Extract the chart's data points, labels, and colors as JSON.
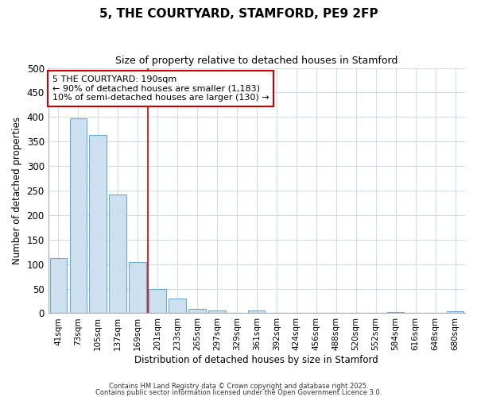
{
  "title": "5, THE COURTYARD, STAMFORD, PE9 2FP",
  "subtitle": "Size of property relative to detached houses in Stamford",
  "xlabel": "Distribution of detached houses by size in Stamford",
  "ylabel": "Number of detached properties",
  "bar_color": "#cce0f0",
  "bar_edge_color": "#6aaad4",
  "categories": [
    "41sqm",
    "73sqm",
    "105sqm",
    "137sqm",
    "169sqm",
    "201sqm",
    "233sqm",
    "265sqm",
    "297sqm",
    "329sqm",
    "361sqm",
    "392sqm",
    "424sqm",
    "456sqm",
    "488sqm",
    "520sqm",
    "552sqm",
    "584sqm",
    "616sqm",
    "648sqm",
    "680sqm"
  ],
  "values": [
    113,
    397,
    363,
    242,
    105,
    50,
    30,
    9,
    6,
    0,
    6,
    0,
    0,
    0,
    0,
    0,
    0,
    3,
    0,
    0,
    4
  ],
  "ylim": [
    0,
    500
  ],
  "yticks": [
    0,
    50,
    100,
    150,
    200,
    250,
    300,
    350,
    400,
    450,
    500
  ],
  "vline_x_index": 5,
  "vline_color": "#cc0000",
  "annotation_text": "5 THE COURTYARD: 190sqm\n← 90% of detached houses are smaller (1,183)\n10% of semi-detached houses are larger (130) →",
  "annotation_box_facecolor": "#ffffff",
  "annotation_box_edgecolor": "#cc0000",
  "footnote1": "Contains HM Land Registry data © Crown copyright and database right 2025.",
  "footnote2": "Contains public sector information licensed under the Open Government Licence 3.0.",
  "background_color": "#ffffff",
  "grid_color": "#d0dce8",
  "title_fontsize": 11,
  "subtitle_fontsize": 9
}
